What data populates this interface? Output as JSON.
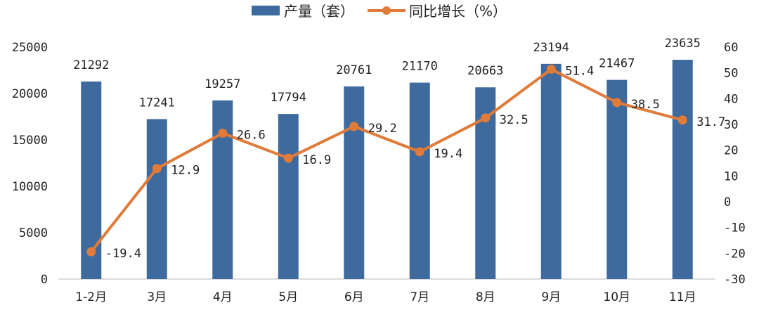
{
  "chart_data": {
    "type": "bar+line",
    "categories": [
      "1-2月",
      "3月",
      "4月",
      "5月",
      "6月",
      "7月",
      "8月",
      "9月",
      "10月",
      "11月"
    ],
    "series": [
      {
        "name": "产量（套）",
        "type": "bar",
        "axis": "left",
        "color": "#3E6A9E",
        "values": [
          21292,
          17241,
          19257,
          17794,
          20761,
          21170,
          20663,
          23194,
          21467,
          23635
        ],
        "labels": [
          "21292",
          "17241",
          "19257",
          "17794",
          "20761",
          "21170",
          "20663",
          "23194",
          "21467",
          "23635"
        ]
      },
      {
        "name": "同比增长（%）",
        "type": "line",
        "axis": "right",
        "color": "#E07B39",
        "values": [
          -19.4,
          12.9,
          26.6,
          16.9,
          29.2,
          19.4,
          32.5,
          51.4,
          38.5,
          31.7
        ],
        "labels": [
          "-19.4",
          "12.9",
          "26.6",
          "16.9",
          "29.2",
          "19.4",
          "32.5",
          "51.4",
          "38.5",
          "31.7"
        ]
      }
    ],
    "y_left": {
      "lim": [
        0,
        25000
      ],
      "ticks": [
        "0",
        "5000",
        "10000",
        "15000",
        "20000",
        "25000"
      ],
      "values": [
        0,
        5000,
        10000,
        15000,
        20000,
        25000
      ]
    },
    "y_right": {
      "lim": [
        -30,
        60
      ],
      "ticks": [
        "-30",
        "-20",
        "-10",
        "0",
        "10",
        "20",
        "30",
        "40",
        "50",
        "60"
      ],
      "values": [
        -30,
        -20,
        -10,
        0,
        10,
        20,
        30,
        40,
        50,
        60
      ]
    },
    "legend_position": "top",
    "grid": false
  }
}
